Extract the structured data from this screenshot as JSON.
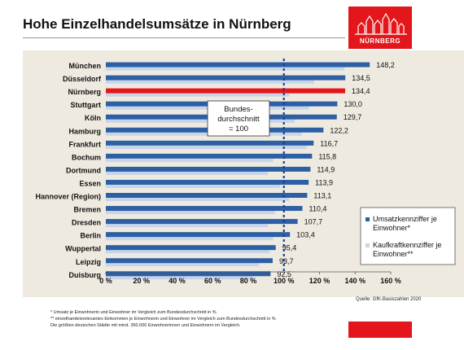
{
  "header": {
    "title": "Hohe Einzelhandelsumsätze in Nürnberg",
    "logo_text": "NÜRNBERG"
  },
  "chart_data": {
    "type": "bar",
    "orientation": "horizontal",
    "title": "",
    "xlabel": "",
    "ylabel": "",
    "xlim": [
      0,
      160
    ],
    "ticks": [
      "0 %",
      "20 %",
      "40 %",
      "60 %",
      "80 %",
      "100 %",
      "120 %",
      "140 %",
      "160 %"
    ],
    "tick_values": [
      0,
      20,
      40,
      60,
      80,
      100,
      120,
      140,
      160
    ],
    "categories": [
      "München",
      "Düsseldorf",
      "Nürnberg",
      "Stuttgart",
      "Köln",
      "Hamburg",
      "Frankfurt",
      "Bochum",
      "Dortmund",
      "Essen",
      "Hannover (Region)",
      "Bremen",
      "Dresden",
      "Berlin",
      "Wuppertal",
      "Leipzig",
      "Duisburg"
    ],
    "series": [
      {
        "name": "Umsatzkennziffer je Einwohner*",
        "values": [
          148.2,
          134.5,
          134.4,
          130.0,
          129.7,
          122.2,
          116.7,
          115.8,
          114.9,
          113.9,
          113.1,
          110.4,
          107.7,
          103.4,
          95.4,
          93.7,
          92.5
        ],
        "labels": [
          "148,2",
          "134,5",
          "134,4",
          "130,0",
          "129,7",
          "122,2",
          "116,7",
          "115,8",
          "114,9",
          "113,9",
          "113,1",
          "110,4",
          "107,7",
          "103,4",
          "95,4",
          "93,7",
          "92,5"
        ]
      },
      {
        "name": "Kaufkraftkennziffer je Einwohner**",
        "values": [
          134,
          117,
          103,
          114,
          106,
          110,
          113,
          94,
          91,
          98,
          103,
          95,
          91,
          94,
          92,
          86,
          83
        ]
      }
    ],
    "highlight_category": "Nürnberg",
    "reference_line": {
      "value": 100,
      "label_lines": [
        "Bundes-",
        "durchschnitt",
        "= 100"
      ]
    },
    "grid": false,
    "legend_position": "right",
    "colors": {
      "primary": "#2d5fa4",
      "secondary": "#c6d4ec",
      "highlight": "#e3161b",
      "reference": "#1f3f8c",
      "panel": "#eeeae0"
    }
  },
  "footer": {
    "source": "Quelle: GfK-Basiszahlen 2020",
    "notes": [
      "* Umsatz je Einwohnerin und Einwohner im Vergleich zum Bundesdurchschnitt in %",
      "** einzelhandelsrelevantes Einkommen je Einwohnerin und Einwohner im Vergleich zum Bundesdurchschnitt in %",
      "Die größten deutschen Städte mit mind. 350.000 Einwohnerinnen und Einwohnern im Vergleich."
    ]
  }
}
